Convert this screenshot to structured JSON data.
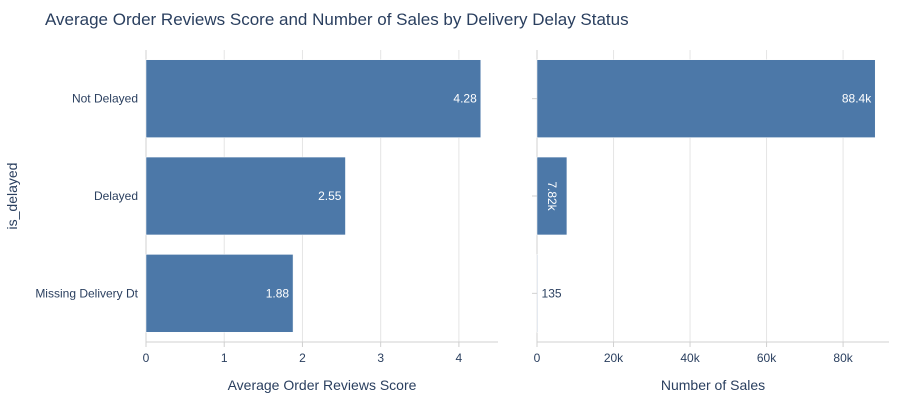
{
  "chart_data": {
    "type": "bar",
    "orientation": "horizontal",
    "title": "Average Order Reviews Score and Number of Sales by Delivery Delay Status",
    "ylabel": "is_delayed",
    "categories": [
      "Not Delayed",
      "Delayed",
      "Missing Delivery Dt"
    ],
    "bar_color": "#4c78a8",
    "panels": [
      {
        "xlabel": "Average Order Reviews Score",
        "values": [
          4.28,
          2.55,
          1.88
        ],
        "value_labels": [
          "4.28",
          "2.55",
          "1.88"
        ],
        "xlim": [
          0,
          4.5
        ],
        "xticks": [
          0,
          1,
          2,
          3,
          4
        ],
        "xtick_labels": [
          "0",
          "1",
          "2",
          "3",
          "4"
        ]
      },
      {
        "xlabel": "Number of Sales",
        "values": [
          88400,
          7820,
          135
        ],
        "value_labels": [
          "88.4k",
          "7.82k",
          "135"
        ],
        "xlim": [
          0,
          92000
        ],
        "xticks": [
          0,
          20000,
          40000,
          60000,
          80000
        ],
        "xtick_labels": [
          "0",
          "20k",
          "40k",
          "60k",
          "80k"
        ]
      }
    ],
    "grid": true,
    "legend": "none"
  }
}
